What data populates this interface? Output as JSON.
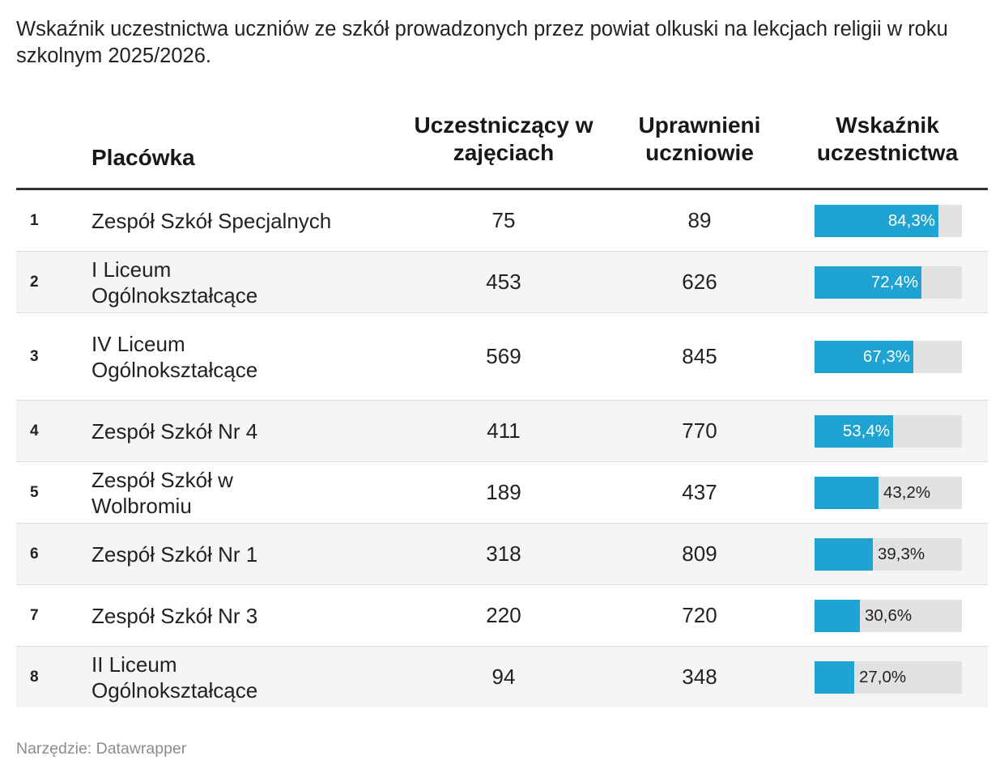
{
  "title": "Wskaźnik uczestnictwa uczniów ze szkół prowadzonych przez powiat olkuski na lekcjach religii w roku szkolnym 2025/2026.",
  "table": {
    "headers": {
      "name": "Placówka",
      "participating": "Uczestniczący w zajęciach",
      "eligible": "Uprawnieni uczniowie",
      "rate": "Wskaźnik uczestnictwa"
    },
    "rows": [
      {
        "rank": "1",
        "name": "Zespół Szkół Specjalnych",
        "participating": "75",
        "eligible": "89",
        "rate": "84,3%"
      },
      {
        "rank": "2",
        "name": "I Liceum Ogólnokształcące",
        "participating": "453",
        "eligible": "626",
        "rate": "72,4%"
      },
      {
        "rank": "3",
        "name": "IV Liceum Ogólnokształcące",
        "participating": "569",
        "eligible": "845",
        "rate": "67,3%"
      },
      {
        "rank": "4",
        "name": "Zespół Szkół Nr 4",
        "participating": "411",
        "eligible": "770",
        "rate": "53,4%"
      },
      {
        "rank": "5",
        "name": "Zespół Szkół w Wolbromiu",
        "participating": "189",
        "eligible": "437",
        "rate": "43,2%"
      },
      {
        "rank": "6",
        "name": "Zespół Szkół Nr 1",
        "participating": "318",
        "eligible": "809",
        "rate": "39,3%"
      },
      {
        "rank": "7",
        "name": "Zespół Szkół Nr 3",
        "participating": "220",
        "eligible": "720",
        "rate": "30,6%"
      },
      {
        "rank": "8",
        "name": "II Liceum Ogólnokształcące",
        "participating": "94",
        "eligible": "348",
        "rate": "27,0%"
      }
    ]
  },
  "colors": {
    "bar": "#1ea3d2",
    "bar_track": "#e2e2e2"
  },
  "footer": {
    "source": "Narzędzie: Datawrapper"
  },
  "chart_data": {
    "type": "table",
    "title": "Wskaźnik uczestnictwa uczniów ze szkół prowadzonych przez powiat olkuski na lekcjach religii w roku szkolnym 2025/2026.",
    "categories": [
      "Zespół Szkół Specjalnych",
      "I Liceum Ogólnokształcące",
      "IV Liceum Ogólnokształcące",
      "Zespół Szkół Nr 4",
      "Zespół Szkół w Wolbromiu",
      "Zespół Szkół Nr 1",
      "Zespół Szkół Nr 3",
      "II Liceum Ogólnokształcące"
    ],
    "series": [
      {
        "name": "Uczestniczący w zajęciach",
        "values": [
          75,
          453,
          569,
          411,
          189,
          318,
          220,
          94
        ]
      },
      {
        "name": "Uprawnieni uczniowie",
        "values": [
          89,
          626,
          845,
          770,
          437,
          809,
          720,
          348
        ]
      },
      {
        "name": "Wskaźnik uczestnictwa",
        "values": [
          84.3,
          72.4,
          67.3,
          53.4,
          43.2,
          39.3,
          30.6,
          27.0
        ]
      }
    ],
    "ylim": [
      0,
      100
    ]
  }
}
